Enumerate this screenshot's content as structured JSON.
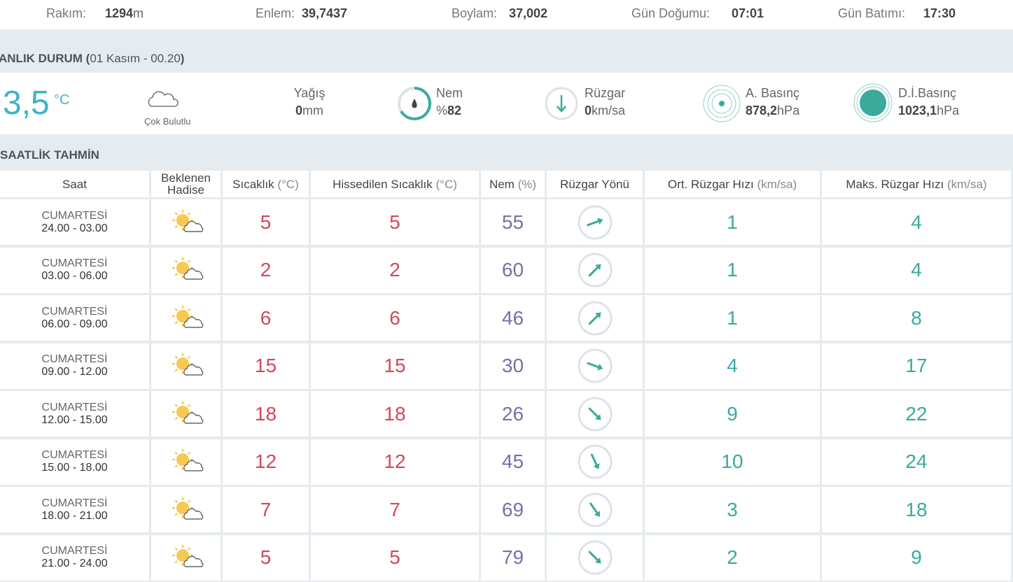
{
  "top_bar": [
    {
      "label": "Rakım:",
      "value": "1294",
      "unit": "m"
    },
    {
      "label": "Enlem:",
      "value": "39,7437"
    },
    {
      "label": "Boylam:",
      "value": "37,002"
    },
    {
      "label": "Gün Doğumu:",
      "value": "07:01"
    },
    {
      "label": "Gün Batımı:",
      "value": "17:30"
    }
  ],
  "current": {
    "title": "ANLIK DURUM (",
    "date": "01 Kasım - 00.20",
    "title_end": ")",
    "temperature": "3,5",
    "temperature_unit": "°C",
    "condition": "Çok Bulutlu",
    "items": [
      {
        "label": "Yağış",
        "value": "0",
        "unit": "mm"
      },
      {
        "label": "Nem",
        "prefix": "%",
        "value": "82"
      },
      {
        "label": "Rüzgar",
        "value": "0",
        "unit": "km/sa"
      },
      {
        "label": "A. Basınç",
        "value": "878,2",
        "unit": "hPa"
      },
      {
        "label": "D.İ.Basınç",
        "value": "1023,1",
        "unit": "hPa"
      }
    ]
  },
  "hourly": {
    "title": "SAATLİK TAHMİN",
    "columns": [
      {
        "label": "Saat"
      },
      {
        "label": "Beklenen Hadise"
      },
      {
        "label": "Sıcaklık",
        "unit": "(°C)"
      },
      {
        "label": "Hissedilen Sıcaklık",
        "unit": "(°C)"
      },
      {
        "label": "Nem",
        "unit": "(%)"
      },
      {
        "label": "Rüzgar Yönü"
      },
      {
        "label": "Ort. Rüzgar Hızı",
        "unit": "(km/sa)"
      },
      {
        "label": "Maks. Rüzgar Hızı",
        "unit": "(km/sa)"
      }
    ],
    "rows": [
      {
        "day": "CUMARTESİ",
        "time": "24.00 - 03.00",
        "temperature": 5,
        "feels_like": 5,
        "humidity": 55,
        "wind_direction_deg": 70,
        "wind_avg": 1,
        "wind_max": 4
      },
      {
        "day": "CUMARTESİ",
        "time": "03.00 - 06.00",
        "temperature": 2,
        "feels_like": 2,
        "humidity": 60,
        "wind_direction_deg": 45,
        "wind_avg": 1,
        "wind_max": 4
      },
      {
        "day": "CUMARTESİ",
        "time": "06.00 - 09.00",
        "temperature": 6,
        "feels_like": 6,
        "humidity": 46,
        "wind_direction_deg": 45,
        "wind_avg": 1,
        "wind_max": 8
      },
      {
        "day": "CUMARTESİ",
        "time": "09.00 - 12.00",
        "temperature": 15,
        "feels_like": 15,
        "humidity": 30,
        "wind_direction_deg": 110,
        "wind_avg": 4,
        "wind_max": 17
      },
      {
        "day": "CUMARTESİ",
        "time": "12.00 - 15.00",
        "temperature": 18,
        "feels_like": 18,
        "humidity": 26,
        "wind_direction_deg": 135,
        "wind_avg": 9,
        "wind_max": 22
      },
      {
        "day": "CUMARTESİ",
        "time": "15.00 - 18.00",
        "temperature": 12,
        "feels_like": 12,
        "humidity": 45,
        "wind_direction_deg": 155,
        "wind_avg": 10,
        "wind_max": 24
      },
      {
        "day": "CUMARTESİ",
        "time": "18.00 - 21.00",
        "temperature": 7,
        "feels_like": 7,
        "humidity": 69,
        "wind_direction_deg": 145,
        "wind_avg": 3,
        "wind_max": 18
      },
      {
        "day": "CUMARTESİ",
        "time": "21.00 - 24.00",
        "temperature": 5,
        "feels_like": 5,
        "humidity": 79,
        "wind_direction_deg": 135,
        "wind_avg": 2,
        "wind_max": 9
      }
    ]
  }
}
